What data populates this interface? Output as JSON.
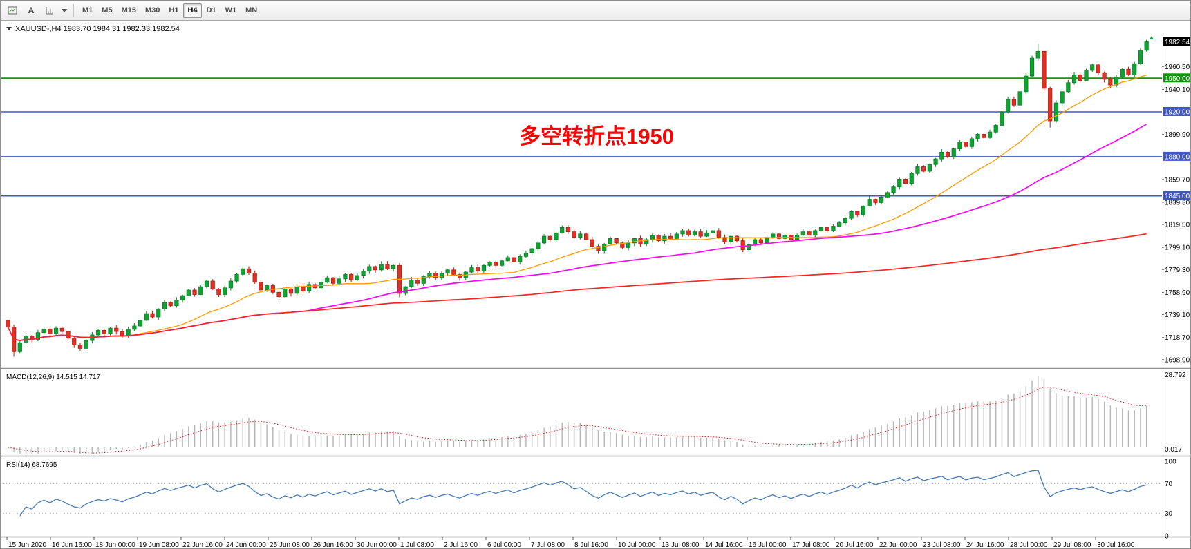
{
  "toolbar": {
    "tools": [
      {
        "name": "chart-window-icon"
      },
      {
        "name": "text-label-tool",
        "glyph": "A"
      },
      {
        "name": "chart-shift-icon"
      },
      {
        "name": "objects-dropdown"
      }
    ],
    "timeframes": [
      {
        "label": "M1",
        "active": false
      },
      {
        "label": "M5",
        "active": false
      },
      {
        "label": "M15",
        "active": false
      },
      {
        "label": "M30",
        "active": false
      },
      {
        "label": "H1",
        "active": false
      },
      {
        "label": "H4",
        "active": true
      },
      {
        "label": "D1",
        "active": false
      },
      {
        "label": "W1",
        "active": false
      },
      {
        "label": "MN",
        "active": false
      }
    ]
  },
  "chart_data": {
    "type": "candlestick",
    "symbol": "XAUUSD-",
    "period": "H4",
    "quote": {
      "open": "1983.70",
      "high": "1984.31",
      "low": "1982.33",
      "close": "1982.54"
    },
    "closes": [
      1728,
      1706,
      1714,
      1720,
      1717,
      1723,
      1726,
      1722,
      1727,
      1724,
      1718,
      1712,
      1709,
      1716,
      1721,
      1725,
      1722,
      1727,
      1724,
      1720,
      1726,
      1729,
      1734,
      1740,
      1737,
      1744,
      1750,
      1747,
      1752,
      1756,
      1761,
      1757,
      1764,
      1769,
      1762,
      1757,
      1763,
      1769,
      1775,
      1780,
      1776,
      1768,
      1761,
      1765,
      1759,
      1755,
      1762,
      1758,
      1764,
      1760,
      1766,
      1763,
      1768,
      1772,
      1767,
      1771,
      1775,
      1770,
      1774,
      1778,
      1782,
      1779,
      1784,
      1780,
      1783,
      1758,
      1764,
      1770,
      1767,
      1773,
      1776,
      1772,
      1776,
      1779,
      1775,
      1772,
      1777,
      1781,
      1778,
      1783,
      1786,
      1783,
      1787,
      1790,
      1786,
      1791,
      1794,
      1798,
      1803,
      1809,
      1806,
      1812,
      1817,
      1813,
      1808,
      1811,
      1806,
      1800,
      1796,
      1802,
      1807,
      1803,
      1799,
      1803,
      1807,
      1802,
      1806,
      1810,
      1805,
      1809,
      1807,
      1811,
      1814,
      1810,
      1813,
      1809,
      1812,
      1814,
      1808,
      1804,
      1809,
      1805,
      1797,
      1802,
      1806,
      1803,
      1808,
      1811,
      1807,
      1810,
      1806,
      1810,
      1813,
      1810,
      1814,
      1817,
      1814,
      1818,
      1821,
      1825,
      1831,
      1828,
      1836,
      1842,
      1839,
      1844,
      1848,
      1853,
      1860,
      1856,
      1865,
      1871,
      1867,
      1873,
      1878,
      1884,
      1880,
      1887,
      1893,
      1889,
      1896,
      1900,
      1897,
      1902,
      1908,
      1920,
      1931,
      1926,
      1938,
      1952,
      1968,
      1974,
      1941,
      1912,
      1928,
      1938,
      1946,
      1953,
      1948,
      1957,
      1962,
      1955,
      1949,
      1944,
      1951,
      1958,
      1953,
      1963,
      1975,
      1982.54
    ],
    "first_open": 1734,
    "wick_overrides": {
      "1": {
        "low": 1701.5
      },
      "65": {
        "low": 1754.5
      },
      "92": {
        "high": 1818.6
      },
      "171": {
        "high": 1980.6
      },
      "173": {
        "low": 1906
      },
      "189": {
        "high": 1984.31,
        "low": 1973.8
      }
    },
    "price_axis": {
      "top_price": 1989.0,
      "bottom_price": 1692.0,
      "labels": [
        "1960.50",
        "1940.10",
        "1899.90",
        "1859.70",
        "1839.30",
        "1819.50",
        "1799.10",
        "1779.30",
        "1758.90",
        "1739.10",
        "1718.70",
        "1698.90"
      ],
      "current_price": "1982.54"
    },
    "hlines": [
      {
        "price": 1950.0,
        "label": "1950.00",
        "color": "#0a9a00",
        "width": 2
      },
      {
        "price": 1920.0,
        "label": "1920.00",
        "color": "#3f56c8",
        "width": 1.5
      },
      {
        "price": 1880.0,
        "label": "1880.00",
        "color": "#3f56c8",
        "width": 1.5
      },
      {
        "price": 1845.0,
        "label": "1845.00",
        "color": "#3f56c8",
        "width": 1.5
      }
    ],
    "moving_averages": [
      {
        "period": 20,
        "color": "#ff9900",
        "width": 1.3,
        "name": "ma-fast-orange"
      },
      {
        "period": 50,
        "color": "#ff00ff",
        "width": 1.7,
        "name": "ma-mid-magenta"
      },
      {
        "period": 200,
        "color": "#ff2222",
        "width": 1.7,
        "name": "ma-slow-red"
      }
    ],
    "annotation": {
      "text": "多空转折点1950",
      "color": "#ff0000"
    },
    "time_labels": [
      "15 Jun 2020",
      "16 Jun 16:00",
      "18 Jun 00:00",
      "19 Jun 08:00",
      "22 Jun 16:00",
      "24 Jun 00:00",
      "25 Jun 08:00",
      "26 Jun 16:00",
      "30 Jun 00:00",
      "1 Jul 08:00",
      "2 Jul 16:00",
      "6 Jul 00:00",
      "7 Jul 08:00",
      "8 Jul 16:00",
      "10 Jul 00:00",
      "13 Jul 08:00",
      "14 Jul 16:00",
      "16 Jul 00:00",
      "17 Jul 08:00",
      "20 Jul 16:00",
      "22 Jul 00:00",
      "23 Jul 08:00",
      "24 Jul 16:00",
      "28 Jul 00:00",
      "29 Jul 08:00",
      "30 Jul 16:00"
    ],
    "indicators": {
      "macd": {
        "label": "MACD(12,26,9)",
        "values": "14.515 14.717",
        "fast": 12,
        "slow": 26,
        "signal": 9,
        "axis_max": "28.792",
        "axis_min": "0.017",
        "bar_color": "#b4b4b4",
        "signal_color": "#ff0000"
      },
      "rsi": {
        "label": "RSI(14)",
        "value": "68.7695",
        "period": 14,
        "axis": [
          "100",
          "70",
          "30",
          "0"
        ],
        "levels": [
          70,
          30
        ],
        "line_color": "#4579b5",
        "level_color": "#b8b8b8"
      }
    },
    "candle_colors": {
      "bull": "#0ea432",
      "bull_stroke": "#0b7d26",
      "bear": "#e03224",
      "bear_stroke": "#b01e14"
    }
  }
}
